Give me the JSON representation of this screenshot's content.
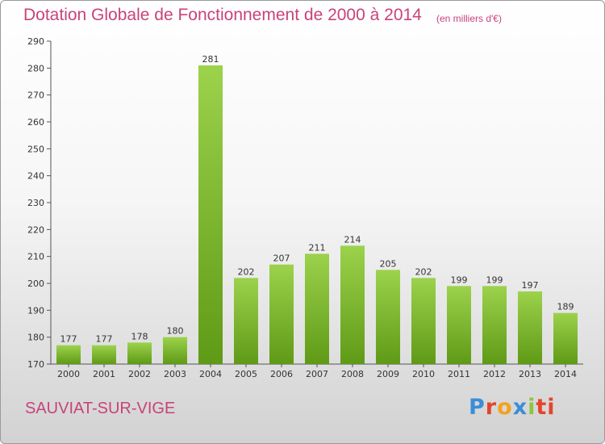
{
  "header": {
    "title": "Dotation Globale de Fonctionnement de 2000 à 2014",
    "unit": "(en milliers d'€)"
  },
  "footer": {
    "commune": "SAUVIAT-SUR-VIGE",
    "logo_text": "Proxiti",
    "logo_letters": [
      "P",
      "r",
      "o",
      "x",
      "i",
      "ti"
    ]
  },
  "colors": {
    "title": "#c8437a",
    "bar_top": "#9cd24c",
    "bar_bottom": "#5f9a16"
  },
  "chart_data": {
    "type": "bar",
    "title": "Dotation Globale de Fonctionnement de 2000 à 2014",
    "subtitle": "(en milliers d'€)",
    "xlabel": "",
    "ylabel": "",
    "categories": [
      "2000",
      "2001",
      "2002",
      "2003",
      "2004",
      "2005",
      "2006",
      "2007",
      "2008",
      "2009",
      "2010",
      "2011",
      "2012",
      "2013",
      "2014"
    ],
    "values": [
      177,
      177,
      178,
      180,
      281,
      202,
      207,
      211,
      214,
      205,
      202,
      199,
      199,
      197,
      189
    ],
    "ylim": [
      170,
      290
    ],
    "yticks": [
      170,
      180,
      190,
      200,
      210,
      220,
      230,
      240,
      250,
      260,
      270,
      280,
      290
    ],
    "grid": false,
    "legend": "none"
  }
}
